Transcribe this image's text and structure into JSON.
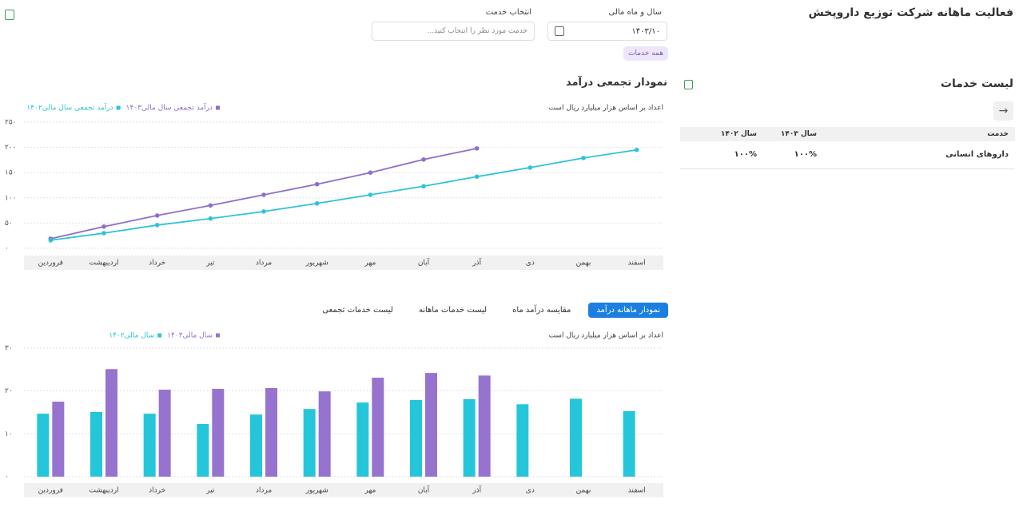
{
  "header": {
    "title": "فعالیت ماهانه شرکت توزیع داروپخش"
  },
  "filters": {
    "period_label": "سال و ماه مالی",
    "period_value": "۱۴۰۳/۱۰",
    "service_label": "انتخاب خدمت",
    "service_placeholder": "خدمت مورد نظر را انتخاب کنید...",
    "chip": "همه خدمات"
  },
  "services_panel": {
    "title": "لیست خدمات",
    "table": {
      "columns": [
        "خدمت",
        "سال ۱۴۰۳",
        "سال ۱۴۰۲"
      ],
      "rows": [
        [
          "داروهای انسانی",
          "۱۰۰%",
          "۱۰۰%"
        ]
      ]
    }
  },
  "tabs": [
    "نمودار ماهانه درآمد",
    "مقایسه درآمد ماه",
    "لیست خدمات ماهانه",
    "لیست خدمات تجمعی"
  ],
  "chart_data": [
    {
      "type": "line",
      "title": "نمودار تجمعی درآمد",
      "note": "اعداد بر اساس هزار میلیارد ریال است",
      "categories": [
        "فروردین",
        "اردیبهشت",
        "خرداد",
        "تیر",
        "مرداد",
        "شهریور",
        "مهر",
        "آبان",
        "آذر",
        "دی",
        "بهمن",
        "اسفند"
      ],
      "series": [
        {
          "name": "درآمد تجمعی سال مالی۱۴۰۳",
          "color": "#8e6fcc",
          "values": [
            19,
            43,
            65,
            85,
            106,
            127,
            150,
            176,
            198,
            null,
            null,
            null
          ]
        },
        {
          "name": "درآمد تجمعی سال مالی۱۴۰۲",
          "color": "#2ec4d6",
          "values": [
            16,
            30,
            46,
            59,
            73,
            89,
            106,
            123,
            142,
            160,
            179,
            195
          ]
        }
      ],
      "ylim": [
        0,
        250
      ],
      "yticks": [
        {
          "value": 0,
          "label": "۰"
        },
        {
          "value": 50,
          "label": "۵۰"
        },
        {
          "value": 100,
          "label": "۱۰۰"
        },
        {
          "value": 150,
          "label": "۱۵۰"
        },
        {
          "value": 200,
          "label": "۲۰۰"
        },
        {
          "value": 250,
          "label": "۲۵۰"
        }
      ],
      "grid": true
    },
    {
      "type": "bar",
      "note": "اعداد بر اساس هزار میلیارد ریال است",
      "categories": [
        "فروردین",
        "اردیبهشت",
        "خرداد",
        "تیر",
        "مرداد",
        "شهریور",
        "مهر",
        "آبان",
        "آذر",
        "دی",
        "بهمن",
        "اسفند"
      ],
      "series": [
        {
          "name": "سال مالی۱۴۰۳",
          "color": "#9673cf",
          "values": [
            17.5,
            25.1,
            20.3,
            20.5,
            20.7,
            19.9,
            23.1,
            24.2,
            23.6,
            null,
            null,
            null
          ]
        },
        {
          "name": "سال مالی۱۴۰۲",
          "color": "#26c6da",
          "values": [
            14.7,
            15.1,
            14.7,
            12.3,
            14.5,
            15.8,
            17.3,
            17.9,
            18.1,
            16.9,
            18.2,
            15.3
          ]
        }
      ],
      "ylim": [
        0,
        30
      ],
      "yticks": [
        {
          "value": 0,
          "label": "۰"
        },
        {
          "value": 10,
          "label": "۱۰"
        },
        {
          "value": 20,
          "label": "۲۰"
        },
        {
          "value": 30,
          "label": "۳۰"
        }
      ],
      "grid": true
    }
  ]
}
